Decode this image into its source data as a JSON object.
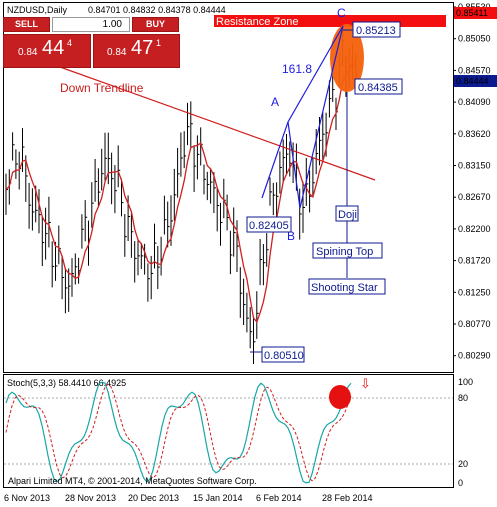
{
  "header": {
    "symbol": "NZDUSD,Daily",
    "ohlc": "0.84701 0.84832 0.84378 0.84444"
  },
  "trade_panel": {
    "sell_label": "SELL",
    "buy_label": "BUY",
    "lot_value": "1.00",
    "sell_price_prefix": "0.84",
    "sell_price_main": "44",
    "sell_price_sup": "4",
    "buy_price_prefix": "0.84",
    "buy_price_main": "47",
    "buy_price_sup": "1"
  },
  "price_axis": [
    "0.85530",
    "0.85050",
    "0.84570",
    "0.84090",
    "0.83620",
    "0.83150",
    "0.82670",
    "0.82200",
    "0.81720",
    "0.81250",
    "0.80770",
    "0.80290"
  ],
  "price_tags": {
    "top": "0.85411",
    "current": "0.84444"
  },
  "annotations": {
    "resistance_zone": "Resistance Zone",
    "down_trendline": "Down Trendline",
    "fib_label": "161.8",
    "label_a": "A",
    "label_b": "B",
    "label_c": "C",
    "price_c": "0.85213",
    "price_high": "0.84385",
    "price_b": "0.82405",
    "price_low": "0.80510",
    "doji": "Doji",
    "spinning_top": "Spining Top",
    "shooting_star": "Shooting Star"
  },
  "indicator": {
    "label": "Stoch(5,3,3) 58.4410 66.4925",
    "levels": [
      "100",
      "80",
      "20",
      "0"
    ]
  },
  "footer": {
    "copyright": "Alpari Limited MT4, © 2001-2014, MetaQuotes Software Corp."
  },
  "time_axis": [
    "6 Nov 2013",
    "28 Nov 2013",
    "20 Dec 2013",
    "15 Jan 2014",
    "6 Feb 2014",
    "28 Feb 2014"
  ],
  "colors": {
    "candles": "#000000",
    "moving_average": "#d11f1f",
    "trendline": "#d11f1f",
    "resistance_zone": "#f30f0f",
    "elliptic_highlight": "#f4600c",
    "wave_lines": "#1d1de0",
    "stoch_main": "#18a6a6",
    "stoch_signal": "#d11f1f",
    "price_tag": "#0c1a8f"
  },
  "chart_data": {
    "type": "candlestick",
    "title": "NZDUSD,Daily",
    "ylim": [
      0.8005,
      0.8555
    ],
    "stochastic": {
      "main": 58.441,
      "signal": 66.4925,
      "ylim": [
        0,
        100
      ],
      "levels": [
        80,
        20
      ]
    }
  }
}
